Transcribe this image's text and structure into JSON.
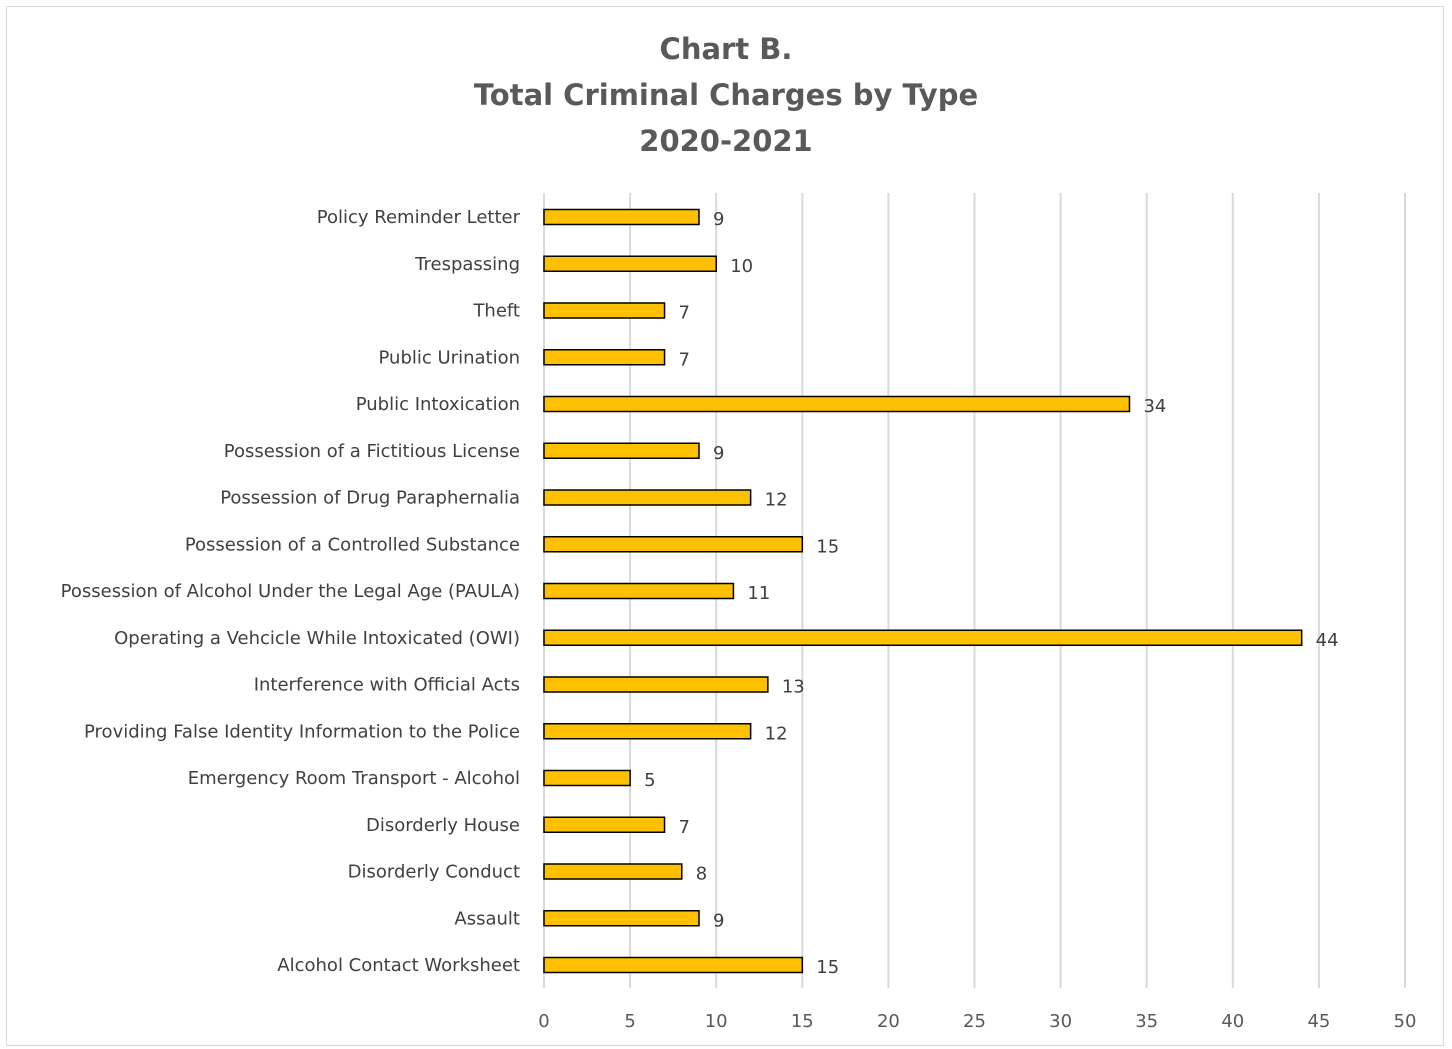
{
  "chart_data": {
    "type": "bar",
    "orientation": "horizontal",
    "title": "Chart B.\nTotal Criminal Charges by Type\n2020-2021",
    "title_lines": [
      "Chart B.",
      "Total Criminal Charges by Type",
      "2020-2021"
    ],
    "xlabel": "",
    "ylabel": "",
    "categories": [
      "Policy Reminder Letter",
      "Trespassing",
      "Theft",
      "Public Urination",
      "Public Intoxication",
      "Possession of a Fictitious License",
      "Possession of Drug Paraphernalia",
      "Possession of a Controlled Substance",
      "Possession of Alcohol Under the Legal Age (PAULA)",
      "Operating a Vehcicle While Intoxicated (OWI)",
      "Interference with Official Acts",
      "Providing False Identity Information to the Police",
      "Emergency Room Transport - Alcohol",
      "Disorderly House",
      "Disorderly Conduct",
      "Assault",
      "Alcohol Contact Worksheet"
    ],
    "values": [
      9,
      10,
      7,
      7,
      34,
      9,
      12,
      15,
      11,
      44,
      13,
      12,
      5,
      7,
      8,
      9,
      15
    ],
    "xlim": [
      0,
      50
    ],
    "xticks": [
      0,
      5,
      10,
      15,
      20,
      25,
      30,
      35,
      40,
      45,
      50
    ],
    "grid": "vertical",
    "legend": "none",
    "data_labels": true,
    "bar_color": "#FFC000",
    "bar_border_color": "#000000",
    "grid_color": "#d9d9d9",
    "text_color": "#404040"
  }
}
